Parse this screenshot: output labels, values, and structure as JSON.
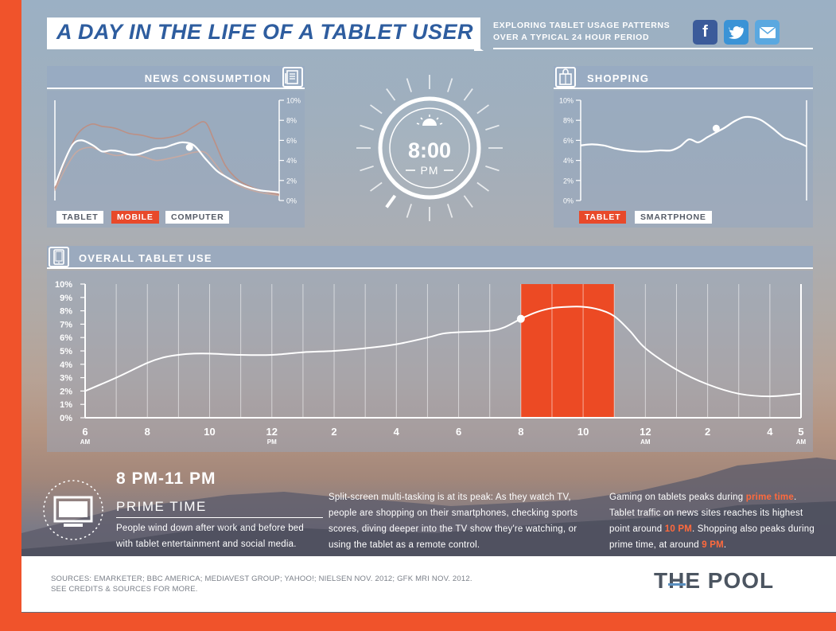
{
  "header": {
    "title": "A DAY IN THE LIFE OF A TABLET USER",
    "subtitle_line1": "EXPLORING TABLET USAGE PATTERNS",
    "subtitle_line2": "OVER A TYPICAL 24 HOUR PERIOD",
    "social": [
      {
        "name": "facebook",
        "glyph": "f",
        "color": "#3b5b9a"
      },
      {
        "name": "twitter",
        "glyph": "t",
        "color": "#3a93d6"
      },
      {
        "name": "email",
        "glyph": "✉",
        "color": "#5aa8e0"
      }
    ]
  },
  "clock": {
    "time": "8:00",
    "period": "PM",
    "icon": "sun-icon"
  },
  "news": {
    "title": "NEWS CONSUMPTION",
    "icon": "newspaper-icon",
    "legend": [
      "TABLET",
      "MOBILE",
      "COMPUTER"
    ]
  },
  "shopping": {
    "title": "SHOPPING",
    "icon": "shopping-bag-icon",
    "legend": [
      "TABLET",
      "SMARTPHONE"
    ]
  },
  "overall": {
    "title": "OVERALL TABLET USE",
    "icon": "tablet-icon"
  },
  "chart_data": [
    {
      "type": "line",
      "id": "news",
      "title": "NEWS CONSUMPTION",
      "ylim": [
        0,
        10
      ],
      "yticks": [
        "10%",
        "8%",
        "6%",
        "4%",
        "2%",
        "0%"
      ],
      "series": [
        {
          "name": "TABLET",
          "color": "#ffffff",
          "x": [
            0,
            4,
            8,
            12,
            17,
            21,
            25,
            29,
            33,
            37,
            41,
            45,
            49,
            53,
            57,
            62,
            67,
            72,
            76,
            80,
            84,
            88,
            92,
            96,
            100
          ],
          "y": [
            1.5,
            3.8,
            5.6,
            6.0,
            5.5,
            4.9,
            5.0,
            4.9,
            4.6,
            4.6,
            4.9,
            5.2,
            5.3,
            5.6,
            5.8,
            5.5,
            4.2,
            3.0,
            2.4,
            1.9,
            1.5,
            1.2,
            1.0,
            0.9,
            0.8
          ]
        },
        {
          "name": "MOBILE",
          "color": "#c48a77",
          "x": [
            0,
            5,
            10,
            16,
            21,
            27,
            33,
            39,
            45,
            51,
            57,
            62,
            67,
            71,
            76,
            82,
            88,
            94,
            100
          ],
          "y": [
            1.2,
            4.2,
            6.6,
            7.6,
            7.4,
            7.2,
            6.7,
            6.5,
            6.2,
            6.3,
            6.7,
            7.4,
            7.8,
            6.0,
            3.5,
            2.0,
            1.3,
            0.9,
            0.6
          ]
        },
        {
          "name": "COMPUTER",
          "color": "#d1a99b",
          "x": [
            0,
            5,
            10,
            16,
            21,
            27,
            33,
            39,
            45,
            51,
            57,
            62,
            67,
            71,
            76,
            82,
            88,
            94,
            100
          ],
          "y": [
            1.0,
            3.3,
            4.9,
            5.3,
            4.9,
            4.5,
            4.6,
            4.4,
            4.0,
            4.2,
            4.5,
            4.8,
            4.8,
            3.8,
            2.4,
            1.5,
            1.0,
            0.7,
            0.5
          ]
        }
      ],
      "highlight_point": {
        "series": "TABLET",
        "x": 60,
        "y": 5.3
      }
    },
    {
      "type": "line",
      "id": "shopping",
      "title": "SHOPPING",
      "ylim": [
        0,
        10
      ],
      "yticks": [
        "10%",
        "8%",
        "6%",
        "4%",
        "2%",
        "0%"
      ],
      "series": [
        {
          "name": "TABLET",
          "color": "#ffffff",
          "x": [
            0,
            5,
            10,
            15,
            20,
            25,
            30,
            35,
            40,
            44,
            48,
            52,
            56,
            60,
            64,
            68,
            72,
            76,
            80,
            85,
            90,
            95,
            100
          ],
          "y": [
            5.5,
            5.6,
            5.5,
            5.2,
            5.0,
            4.9,
            4.9,
            5.0,
            5.0,
            5.4,
            6.1,
            5.8,
            6.3,
            6.8,
            7.3,
            7.9,
            8.3,
            8.3,
            8.0,
            7.2,
            6.3,
            5.9,
            5.4
          ]
        }
      ],
      "highlight_point": {
        "series": "TABLET",
        "x": 60,
        "y": 7.2
      }
    },
    {
      "type": "line",
      "id": "overall",
      "title": "OVERALL TABLET USE",
      "ylim": [
        0,
        10
      ],
      "yticks": [
        "10%",
        "9%",
        "8%",
        "7%",
        "6%",
        "5%",
        "4%",
        "3%",
        "2%",
        "1%",
        "0%"
      ],
      "xlim": [
        6,
        29
      ],
      "xticks": [
        {
          "x": 6,
          "label": "6",
          "sub": "AM"
        },
        {
          "x": 8,
          "label": "8",
          "sub": ""
        },
        {
          "x": 10,
          "label": "10",
          "sub": ""
        },
        {
          "x": 12,
          "label": "12",
          "sub": "PM"
        },
        {
          "x": 14,
          "label": "2",
          "sub": ""
        },
        {
          "x": 16,
          "label": "4",
          "sub": ""
        },
        {
          "x": 18,
          "label": "6",
          "sub": ""
        },
        {
          "x": 20,
          "label": "8",
          "sub": ""
        },
        {
          "x": 22,
          "label": "10",
          "sub": ""
        },
        {
          "x": 24,
          "label": "12",
          "sub": "AM"
        },
        {
          "x": 26,
          "label": "2",
          "sub": ""
        },
        {
          "x": 28,
          "label": "4",
          "sub": ""
        },
        {
          "x": 29,
          "label": "5",
          "sub": "AM"
        }
      ],
      "highlight_range": [
        20,
        23
      ],
      "series": [
        {
          "name": "TABLET",
          "color": "#ffffff",
          "x": [
            6,
            7,
            8,
            8.5,
            9,
            9.5,
            10,
            11,
            12,
            13,
            14,
            15,
            16,
            17,
            17.5,
            18,
            19,
            19.5,
            20,
            20.5,
            21,
            21.5,
            22,
            22.5,
            23,
            23.5,
            24,
            25,
            26,
            27,
            28,
            29
          ],
          "y": [
            2.0,
            3.0,
            4.1,
            4.5,
            4.7,
            4.8,
            4.8,
            4.7,
            4.7,
            4.9,
            5.0,
            5.2,
            5.5,
            6.0,
            6.3,
            6.4,
            6.5,
            6.8,
            7.4,
            7.9,
            8.2,
            8.3,
            8.3,
            8.1,
            7.6,
            6.5,
            5.2,
            3.6,
            2.5,
            1.8,
            1.6,
            1.8
          ]
        }
      ],
      "highlight_point": {
        "series": "TABLET",
        "x": 20,
        "y": 7.4
      }
    }
  ],
  "prime": {
    "range": "8 PM-11 PM",
    "label": "PRIME TIME",
    "icon": "tv-icon",
    "desc_line1": "People wind down after work and before bed",
    "desc_line2": "with tablet entertainment and social media."
  },
  "multitask": {
    "line1": "Split-screen multi-tasking is at its peak: As they watch TV,",
    "line2": "people are shopping on their smartphones, checking sports",
    "line3": "scores, diving deeper into the TV show they're watching, or",
    "line4": "using the tablet as a remote control."
  },
  "gaming": {
    "l1a": "Gaming on tablets peaks during ",
    "l1b": "prime time",
    "l1c": ".",
    "line2": "Tablet traffic on news sites reaches its highest",
    "l3a": "point around ",
    "l3b": "10 PM",
    "l3c": ". Shopping also peaks during",
    "l4a": "prime time, at around ",
    "l4b": "9 PM",
    "l4c": "."
  },
  "footer": {
    "sources_line1": "SOURCES: EMARKETER; BBC AMERICA; MEDIAVEST GROUP; YAHOO!; NIELSEN NOV. 2012; GFK MRI NOV. 2012.",
    "sources_line2": "SEE CREDITS & SOURCES FOR MORE.",
    "logo": "THE POOL"
  }
}
